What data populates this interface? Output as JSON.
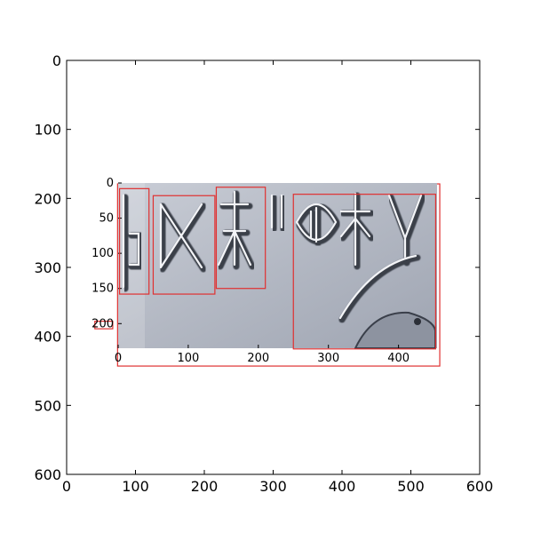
{
  "chart_data": [
    {
      "type": "image_with_boxes",
      "role": "outer-axes",
      "xlim": [
        0,
        600
      ],
      "ylim": [
        600,
        0
      ],
      "xticks": [
        0,
        100,
        200,
        300,
        400,
        500,
        600
      ],
      "yticks": [
        0,
        100,
        200,
        300,
        400,
        500,
        600
      ],
      "xtick_labels": [
        "0",
        "100",
        "200",
        "300",
        "400",
        "500",
        "600"
      ],
      "ytick_labels": [
        "0",
        "100",
        "200",
        "300",
        "400",
        "500",
        "600"
      ],
      "grid": false,
      "boxes": [
        {
          "label": "",
          "x0": 74,
          "y0": 179,
          "x1": 542,
          "y1": 443
        },
        {
          "label": "",
          "x0": 41,
          "y0": 378,
          "x1": 67,
          "y1": 389
        }
      ],
      "box_color": "#e03030"
    },
    {
      "type": "image_with_boxes",
      "role": "inset-image",
      "description_kind": "carved seal impression",
      "xlim": [
        0,
        455
      ],
      "ylim": [
        235,
        0
      ],
      "xticks": [
        0,
        100,
        200,
        300,
        400
      ],
      "yticks": [
        0,
        50,
        100,
        150,
        200
      ],
      "xtick_labels": [
        "0",
        "100",
        "200",
        "300",
        "400"
      ],
      "ytick_labels": [
        "0",
        "50",
        "100",
        "150",
        "200"
      ],
      "grid": false,
      "boxes": [
        {
          "label": "",
          "x0": 2,
          "y0": 8,
          "x1": 44,
          "y1": 158
        },
        {
          "label": "",
          "x0": 50,
          "y0": 18,
          "x1": 138,
          "y1": 158
        },
        {
          "label": "",
          "x0": 140,
          "y0": 6,
          "x1": 210,
          "y1": 150
        },
        {
          "label": "",
          "x0": 250,
          "y0": 16,
          "x1": 453,
          "y1": 236
        }
      ],
      "box_color": "#e03030"
    }
  ]
}
